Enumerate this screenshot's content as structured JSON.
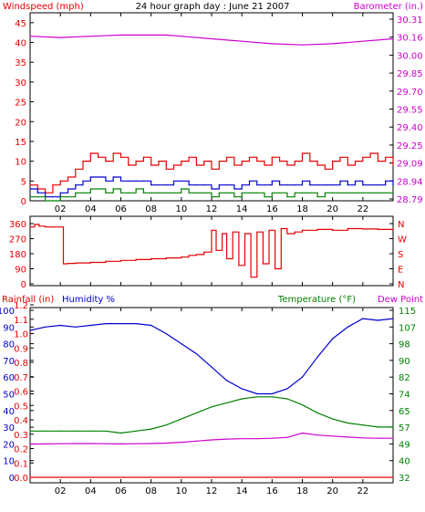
{
  "chart_data": [
    {
      "type": "line",
      "title": "24 hour graph day : June 21 2007",
      "y_left_label": "Windspeed (mph)",
      "y_right_label": "Barometer (in.)",
      "x_ticks": [
        "02",
        "04",
        "06",
        "08",
        "10",
        "12",
        "14",
        "16",
        "18",
        "20",
        "22"
      ],
      "y_left_ticks": [
        "0",
        "5",
        "10",
        "15",
        "20",
        "25",
        "30",
        "35",
        "40",
        "45"
      ],
      "y_right_ticks": [
        "28.79",
        "28.94",
        "29.09",
        "29.25",
        "29.40",
        "29.55",
        "29.70",
        "29.85",
        "30.00",
        "30.16",
        "30.31"
      ],
      "ylim_left": [
        0,
        47.5
      ],
      "ylim_right": [
        28.79,
        30.31
      ],
      "series": [
        {
          "key": "gust",
          "axis": "left",
          "color": "#e60000",
          "x": [
            0,
            0.5,
            1,
            1.5,
            2,
            2.5,
            3,
            3.5,
            4,
            4.5,
            5,
            5.5,
            6,
            6.5,
            7,
            7.5,
            8,
            8.5,
            9,
            9.5,
            10,
            10.5,
            11,
            11.5,
            12,
            12.5,
            13,
            13.5,
            14,
            14.5,
            15,
            15.5,
            16,
            16.5,
            17,
            17.5,
            18,
            18.5,
            19,
            19.5,
            20,
            20.5,
            21,
            21.5,
            22,
            22.5,
            23,
            23.5,
            24
          ],
          "values": [
            4,
            3,
            2,
            4,
            5,
            6,
            8,
            10,
            12,
            11,
            10,
            12,
            11,
            9,
            10,
            11,
            9,
            10,
            8,
            9,
            10,
            11,
            9,
            10,
            8,
            10,
            11,
            9,
            10,
            11,
            10,
            9,
            11,
            10,
            9,
            10,
            12,
            10,
            9,
            8,
            10,
            11,
            9,
            10,
            11,
            12,
            10,
            11,
            9
          ]
        },
        {
          "key": "average",
          "axis": "left",
          "color": "#0000cc",
          "x": [
            0,
            0.5,
            1,
            1.5,
            2,
            2.5,
            3,
            3.5,
            4,
            4.5,
            5,
            5.5,
            6,
            6.5,
            7,
            7.5,
            8,
            8.5,
            9,
            9.5,
            10,
            10.5,
            11,
            11.5,
            12,
            12.5,
            13,
            13.5,
            14,
            14.5,
            15,
            15.5,
            16,
            16.5,
            17,
            17.5,
            18,
            18.5,
            19,
            19.5,
            20,
            20.5,
            21,
            21.5,
            22,
            22.5,
            23,
            23.5,
            24
          ],
          "values": [
            3,
            2,
            1,
            1,
            2,
            3,
            4,
            5,
            6,
            6,
            5,
            6,
            5,
            5,
            5,
            5,
            4,
            4,
            4,
            5,
            5,
            4,
            4,
            4,
            3,
            4,
            4,
            3,
            4,
            5,
            4,
            4,
            5,
            4,
            4,
            4,
            5,
            4,
            4,
            4,
            4,
            5,
            4,
            5,
            4,
            4,
            4,
            5,
            4
          ]
        },
        {
          "key": "low",
          "axis": "left",
          "color": "#008000",
          "x": [
            0,
            0.5,
            1,
            1.5,
            2,
            2.5,
            3,
            3.5,
            4,
            4.5,
            5,
            5.5,
            6,
            6.5,
            7,
            7.5,
            8,
            8.5,
            9,
            9.5,
            10,
            10.5,
            11,
            11.5,
            12,
            12.5,
            13,
            13.5,
            14,
            14.5,
            15,
            15.5,
            16,
            16.5,
            17,
            17.5,
            18,
            18.5,
            19,
            19.5,
            20,
            20.5,
            21,
            21.5,
            22,
            22.5,
            23,
            23.5,
            24
          ],
          "values": [
            1,
            1,
            0,
            0,
            1,
            1,
            2,
            2,
            3,
            3,
            2,
            3,
            2,
            2,
            3,
            2,
            2,
            2,
            2,
            2,
            3,
            2,
            2,
            2,
            1,
            2,
            2,
            1,
            2,
            2,
            2,
            1,
            2,
            2,
            1,
            2,
            2,
            2,
            1,
            2,
            2,
            2,
            2,
            2,
            2,
            2,
            2,
            2,
            2
          ]
        },
        {
          "key": "barometer",
          "axis": "right",
          "color": "#cc00cc",
          "x": [
            0,
            2,
            4,
            6,
            8,
            9,
            10,
            12,
            14,
            16,
            18,
            20,
            22,
            24
          ],
          "values": [
            30.12,
            30.11,
            30.12,
            30.13,
            30.13,
            30.13,
            30.12,
            30.1,
            30.08,
            30.06,
            30.05,
            30.06,
            30.08,
            30.1
          ]
        }
      ]
    },
    {
      "type": "line",
      "title": "",
      "y_left_ticks": [
        "0",
        "90",
        "180",
        "270",
        "360"
      ],
      "y_right_ticks": [
        "N",
        "E",
        "S",
        "W",
        "N"
      ],
      "ylim": [
        0,
        360
      ],
      "series": [
        {
          "key": "direction",
          "color": "#e60000",
          "x": [
            0,
            0.3,
            0.6,
            1,
            1.5,
            2,
            2.2,
            2.5,
            3,
            4,
            5,
            6,
            7,
            8,
            9,
            10,
            10.5,
            11,
            11.5,
            12,
            12.3,
            12.7,
            13,
            13.4,
            13.8,
            14.2,
            14.6,
            15,
            15.4,
            15.8,
            16.2,
            16.6,
            17,
            17.5,
            18,
            19,
            20,
            21,
            22,
            23,
            24
          ],
          "values": [
            340,
            355,
            345,
            340,
            340,
            340,
            120,
            122,
            125,
            128,
            135,
            140,
            145,
            150,
            155,
            160,
            170,
            175,
            190,
            320,
            200,
            300,
            150,
            310,
            110,
            300,
            40,
            310,
            120,
            320,
            90,
            330,
            300,
            310,
            320,
            325,
            320,
            330,
            328,
            325,
            330
          ]
        }
      ]
    },
    {
      "type": "line",
      "title": "",
      "y_left_label": "Rainfall (in)",
      "y_left_label2": "Humidity %",
      "y_right_label": "Temperature (°F)",
      "y_right_label2": "Dew Point",
      "y_left_rain_ticks": [
        "0.0",
        "0.1",
        "0.2",
        "0.3",
        "0.4",
        "0.5",
        "0.6",
        "0.7",
        "0.8",
        "0.9",
        "1.0",
        "1.1",
        "1.2"
      ],
      "y_left_hum_ticks": [
        "0",
        "10",
        "20",
        "30",
        "40",
        "50",
        "60",
        "70",
        "80",
        "90",
        "100"
      ],
      "y_right_ticks": [
        "32",
        "40",
        "49",
        "57",
        "65",
        "74",
        "82",
        "90",
        "98",
        "107",
        "115"
      ],
      "ylim_humidity": [
        0,
        100
      ],
      "ylim_temperature": [
        32,
        115
      ],
      "series": [
        {
          "key": "humidity",
          "axis": "left",
          "color": "#0000cc",
          "x": [
            0,
            1,
            2,
            3,
            4,
            5,
            6,
            7,
            8,
            9,
            10,
            11,
            12,
            13,
            14,
            15,
            16,
            17,
            18,
            19,
            20,
            21,
            22,
            23,
            24
          ],
          "values": [
            88,
            90,
            91,
            90,
            91,
            92,
            92,
            92,
            91,
            86,
            80,
            74,
            66,
            58,
            53,
            50,
            50,
            53,
            60,
            72,
            83,
            90,
            95,
            94,
            95
          ]
        },
        {
          "key": "temperature",
          "axis": "right",
          "color": "#008000",
          "x": [
            0,
            1,
            2,
            3,
            4,
            5,
            6,
            7,
            8,
            9,
            10,
            11,
            12,
            13,
            14,
            15,
            16,
            17,
            18,
            19,
            20,
            21,
            22,
            23,
            24
          ],
          "values": [
            55,
            55,
            55,
            55,
            55,
            55,
            54,
            55,
            56,
            58,
            61,
            64,
            67,
            69,
            71,
            72,
            72,
            71,
            68,
            64,
            61,
            59,
            58,
            57,
            57
          ]
        },
        {
          "key": "dewpoint",
          "axis": "right",
          "color": "#cc00cc",
          "x": [
            0,
            1,
            2,
            3,
            4,
            5,
            6,
            7,
            8,
            9,
            10,
            11,
            12,
            13,
            14,
            15,
            16,
            17,
            18,
            19,
            20,
            21,
            22,
            23,
            24
          ],
          "values": [
            48.5,
            48.6,
            48.7,
            48.8,
            48.8,
            48.7,
            48.6,
            48.7,
            48.8,
            49,
            49.4,
            50,
            50.6,
            51,
            51.2,
            51.2,
            51.4,
            51.8,
            54,
            53,
            52.5,
            52,
            51.6,
            51.4,
            51.4
          ]
        },
        {
          "key": "rainfall",
          "axis": "left",
          "color": "#e60000",
          "x": [
            0,
            24
          ],
          "values": [
            0,
            0
          ]
        }
      ]
    }
  ]
}
